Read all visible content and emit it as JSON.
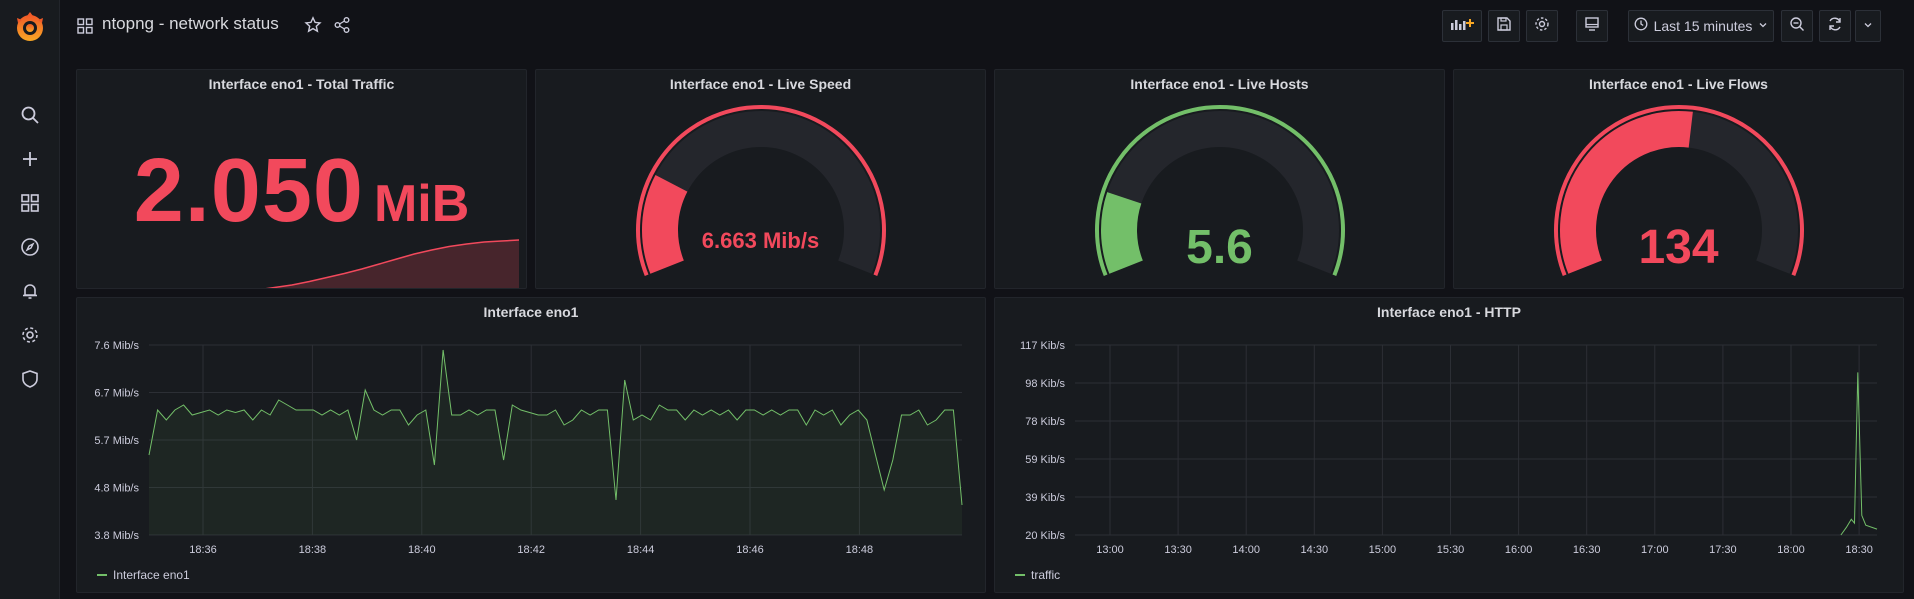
{
  "app": {
    "title": "ntopng - network status"
  },
  "toolbar": {
    "time_range": "Last 15 minutes"
  },
  "colors": {
    "red": "#f2495c",
    "green": "#73bf69",
    "bg": "#111217",
    "panel": "#181b1f"
  },
  "icons": [
    "grafana-logo-icon",
    "search-icon",
    "plus-icon",
    "dashboards-icon",
    "explore-icon",
    "alert-bell-icon",
    "gear-icon",
    "shield-icon",
    "dashboard-grid-icon",
    "star-icon",
    "share-icon",
    "add-panel-icon",
    "save-icon",
    "settings-icon",
    "tv-mode-icon",
    "clock-icon",
    "chevron-down-icon",
    "zoom-out-icon",
    "refresh-icon"
  ],
  "panels": {
    "total_traffic": {
      "title": "Interface eno1 - Total Traffic",
      "value": "2.050",
      "unit": "MiB"
    },
    "live_speed": {
      "title": "Interface eno1 - Live Speed",
      "value": "6.663 Mib/s",
      "fraction": 0.22
    },
    "live_hosts": {
      "title": "Interface eno1 - Live Hosts",
      "value": "5.6",
      "fraction": 0.18
    },
    "live_flows": {
      "title": "Interface eno1 - Live Flows",
      "value": "134",
      "fraction": 0.53
    },
    "eno1": {
      "title": "Interface eno1",
      "legend": "Interface eno1"
    },
    "http": {
      "title": "Interface eno1 - HTTP",
      "legend": "traffic"
    }
  },
  "chart_data": [
    {
      "type": "area",
      "title": "Interface eno1 - Total Traffic",
      "note": "sparkline, no axes",
      "values": [
        0.0,
        0.05,
        0.1,
        0.17,
        0.25,
        0.33,
        0.42,
        0.52,
        0.62,
        0.72,
        0.8,
        0.87,
        0.92,
        0.96,
        0.98,
        1.0
      ]
    },
    {
      "type": "area",
      "title": "Interface eno1",
      "x_ticks": [
        "18:36",
        "18:38",
        "18:40",
        "18:42",
        "18:44",
        "18:46",
        "18:48"
      ],
      "y_ticks": [
        "3.8 Mib/s",
        "4.8 Mib/s",
        "5.7 Mib/s",
        "6.7 Mib/s",
        "7.6 Mib/s"
      ],
      "ylim": [
        3.8,
        7.6
      ],
      "series": [
        {
          "name": "Interface eno1",
          "values": [
            5.4,
            6.3,
            6.1,
            6.3,
            6.4,
            6.2,
            6.25,
            6.3,
            6.2,
            6.3,
            6.25,
            6.3,
            6.1,
            6.3,
            6.2,
            6.5,
            6.4,
            6.3,
            6.3,
            6.3,
            6.2,
            6.3,
            6.2,
            6.3,
            5.7,
            6.7,
            6.3,
            6.2,
            6.3,
            6.3,
            6.0,
            6.2,
            6.3,
            5.2,
            7.5,
            6.2,
            6.2,
            6.3,
            6.2,
            6.3,
            6.3,
            5.3,
            6.4,
            6.3,
            6.25,
            6.2,
            6.2,
            6.3,
            6.0,
            6.1,
            6.3,
            6.2,
            6.3,
            6.3,
            4.5,
            6.9,
            6.1,
            6.2,
            6.1,
            6.4,
            6.3,
            6.3,
            6.1,
            6.3,
            6.2,
            6.3,
            6.2,
            6.3,
            6.1,
            6.3,
            6.3,
            6.2,
            6.3,
            6.2,
            6.3,
            6.3,
            6.0,
            6.3,
            6.2,
            6.3,
            6.0,
            6.2,
            6.3,
            6.1,
            5.4,
            4.7,
            5.3,
            6.2,
            6.2,
            6.3,
            6.0,
            6.1,
            6.3,
            6.3,
            4.4
          ]
        }
      ]
    },
    {
      "type": "line",
      "title": "Interface eno1 - HTTP",
      "x_ticks": [
        "13:00",
        "13:30",
        "14:00",
        "14:30",
        "15:00",
        "15:30",
        "16:00",
        "16:30",
        "17:00",
        "17:30",
        "18:00",
        "18:30"
      ],
      "y_ticks": [
        "20 Kib/s",
        "39 Kib/s",
        "59 Kib/s",
        "78 Kib/s",
        "98 Kib/s",
        "117 Kib/s"
      ],
      "ylim": [
        20,
        117
      ],
      "series": [
        {
          "name": "traffic",
          "x_frac": [
            0.955,
            0.962,
            0.968,
            0.972,
            0.976,
            0.981,
            0.986,
            1.0
          ],
          "values": [
            20,
            24,
            28,
            26,
            103,
            30,
            25,
            23
          ]
        }
      ]
    }
  ]
}
